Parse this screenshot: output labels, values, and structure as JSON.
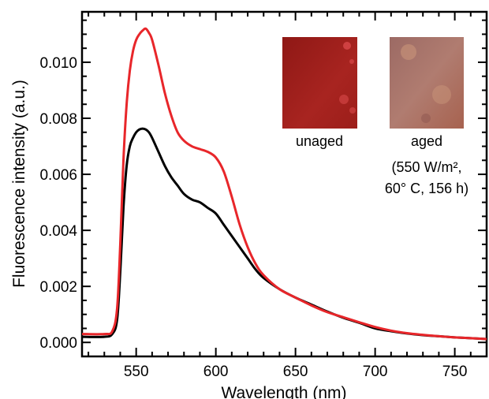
{
  "chart_data": {
    "type": "line",
    "title": "",
    "xlabel": "Wavelength (nm)",
    "ylabel": "Fluorescence intensity (a.u.)",
    "xlim": [
      516,
      770
    ],
    "ylim": [
      -0.0005,
      0.0118
    ],
    "xticks": [
      550,
      600,
      650,
      700,
      750
    ],
    "yticks": [
      0.0,
      0.002,
      0.004,
      0.006,
      0.008,
      0.01
    ],
    "ytick_labels": [
      "0.000",
      "0.002",
      "0.004",
      "0.006",
      "0.008",
      "0.010"
    ],
    "grid": false,
    "legend": "none",
    "series": [
      {
        "color": "#000000",
        "x": [
          516,
          530,
          535,
          538,
          540,
          542,
          544,
          546,
          548,
          550,
          552,
          554,
          556,
          558,
          560,
          564,
          568,
          572,
          576,
          580,
          585,
          590,
          595,
          600,
          605,
          610,
          615,
          620,
          625,
          630,
          640,
          650,
          660,
          670,
          680,
          690,
          700,
          710,
          720,
          730,
          740,
          750,
          760,
          770
        ],
        "y": [
          0.0002,
          0.0002,
          0.0003,
          0.0008,
          0.0025,
          0.0048,
          0.0063,
          0.007,
          0.0073,
          0.0075,
          0.0076,
          0.00763,
          0.0076,
          0.0075,
          0.0073,
          0.0068,
          0.0063,
          0.0059,
          0.0056,
          0.0053,
          0.0051,
          0.005,
          0.0048,
          0.0046,
          0.0042,
          0.0038,
          0.0034,
          0.003,
          0.0026,
          0.0023,
          0.0019,
          0.0016,
          0.00135,
          0.0011,
          0.00088,
          0.0007,
          0.0005,
          0.0004,
          0.00032,
          0.00026,
          0.00022,
          0.00018,
          0.00015,
          0.00012
        ]
      },
      {
        "color": "#e8262a",
        "x": [
          516,
          530,
          535,
          538,
          540,
          542,
          544,
          546,
          548,
          550,
          552,
          554,
          556,
          558,
          560,
          564,
          568,
          572,
          576,
          580,
          585,
          590,
          595,
          600,
          605,
          610,
          615,
          620,
          625,
          630,
          640,
          650,
          660,
          670,
          680,
          690,
          700,
          710,
          720,
          730,
          740,
          750,
          760,
          770
        ],
        "y": [
          0.0003,
          0.0003,
          0.0004,
          0.0012,
          0.0035,
          0.0065,
          0.0085,
          0.0097,
          0.0104,
          0.0108,
          0.011,
          0.01113,
          0.0112,
          0.01105,
          0.0108,
          0.0099,
          0.0089,
          0.0081,
          0.0075,
          0.0072,
          0.007,
          0.0069,
          0.0068,
          0.0066,
          0.0061,
          0.0052,
          0.0042,
          0.0034,
          0.0028,
          0.0024,
          0.0019,
          0.0016,
          0.00132,
          0.00108,
          0.0009,
          0.00072,
          0.00055,
          0.00042,
          0.00033,
          0.00027,
          0.00022,
          0.00018,
          0.00015,
          0.00012
        ]
      }
    ]
  },
  "inset": {
    "unaged": {
      "label": "unaged",
      "color": "#a01c18",
      "spot_color": "#d9494a"
    },
    "aged": {
      "label": "aged",
      "color": "#a8736a",
      "spot_color": "#c9957a",
      "conditions_line1": "(550 W/m²,",
      "conditions_line2": "60° C, 156 h)"
    }
  }
}
